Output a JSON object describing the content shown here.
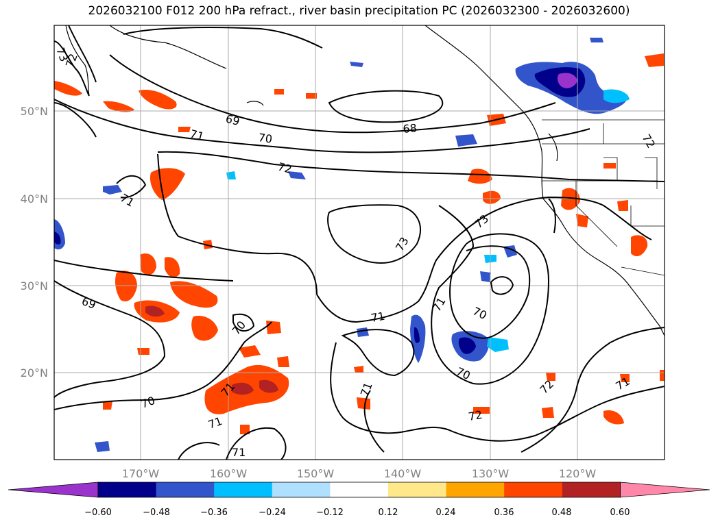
{
  "title": "2026032100 F012 200 hPa refract., river basin precipitation PC (2026032300 - 2026032600)",
  "longitude_ticks": [
    "170°W",
    "160°W",
    "150°W",
    "140°W",
    "130°W",
    "120°W"
  ],
  "latitude_ticks": [
    "50°N",
    "40°N",
    "30°N",
    "20°N"
  ],
  "contour_labels": [
    {
      "text": "73"
    },
    {
      "text": "72"
    },
    {
      "text": "69"
    },
    {
      "text": "70"
    },
    {
      "text": "68"
    },
    {
      "text": "71"
    },
    {
      "text": "72"
    },
    {
      "text": "71"
    },
    {
      "text": "72"
    },
    {
      "text": "73"
    },
    {
      "text": "73"
    },
    {
      "text": "69"
    },
    {
      "text": "70"
    },
    {
      "text": "71"
    },
    {
      "text": "70"
    },
    {
      "text": "70"
    },
    {
      "text": "71"
    },
    {
      "text": "71"
    },
    {
      "text": "71"
    },
    {
      "text": "72"
    },
    {
      "text": "72"
    },
    {
      "text": "71"
    },
    {
      "text": "70"
    },
    {
      "text": "71"
    },
    {
      "text": "71"
    }
  ],
  "colorbar": {
    "labels": [
      "−0.60",
      "−0.48",
      "−0.36",
      "−0.24",
      "−0.12",
      "0.12",
      "0.24",
      "0.36",
      "0.48",
      "0.60"
    ],
    "colors": [
      "#9933cc",
      "#00008b",
      "#3355cc",
      "#00bfff",
      "#b0e0ff",
      "#ffffff",
      "#ffe88a",
      "#ffa500",
      "#ff4500",
      "#b22222",
      "#ff88aa"
    ]
  },
  "legend_colors": {
    "contour": "#000000",
    "grid": "#aaaaaa"
  }
}
